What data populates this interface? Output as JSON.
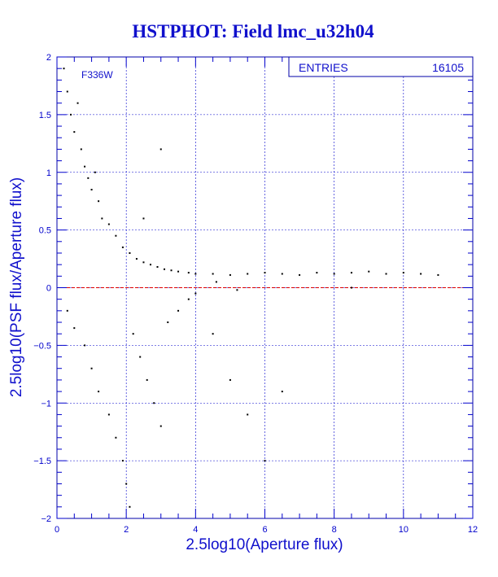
{
  "chart_data": {
    "type": "scatter",
    "title": "HSTPHOT: Field lmc_u32h04",
    "xlabel": "2.5log10(Aperture flux)",
    "ylabel": "2.5log10(PSF flux/Aperture flux)",
    "annotation": "F336W",
    "stats_box": {
      "label": "ENTRIES",
      "value": "16105"
    },
    "xlim": [
      0,
      12
    ],
    "ylim": [
      -2,
      2
    ],
    "x_ticks": [
      0,
      2,
      4,
      6,
      8,
      10,
      12
    ],
    "y_ticks": [
      -2,
      -1.5,
      -1,
      -0.5,
      0,
      0.5,
      1,
      1.5,
      2
    ],
    "x_tick_labels": [
      "0",
      "2",
      "4",
      "6",
      "8",
      "10",
      "12"
    ],
    "y_tick_labels": [
      "−2",
      "−1.5",
      "−1",
      "−0.5",
      "0",
      "0.5",
      "1",
      "1.5",
      "2"
    ],
    "grid": true,
    "reference_line": {
      "y": 0,
      "color": "#dd0000"
    },
    "series": [
      {
        "color": "#000000",
        "points": [
          [
            0.2,
            1.9
          ],
          [
            0.3,
            1.7
          ],
          [
            0.4,
            1.5
          ],
          [
            0.5,
            1.35
          ],
          [
            0.6,
            1.6
          ],
          [
            0.7,
            1.2
          ],
          [
            0.8,
            1.05
          ],
          [
            0.9,
            0.95
          ],
          [
            1.0,
            0.85
          ],
          [
            1.1,
            1.0
          ],
          [
            1.2,
            0.75
          ],
          [
            1.3,
            0.6
          ],
          [
            1.5,
            0.55
          ],
          [
            1.7,
            0.45
          ],
          [
            1.9,
            0.35
          ],
          [
            2.1,
            0.3
          ],
          [
            2.3,
            0.25
          ],
          [
            2.5,
            0.22
          ],
          [
            2.7,
            0.2
          ],
          [
            2.9,
            0.18
          ],
          [
            3.1,
            0.16
          ],
          [
            3.3,
            0.15
          ],
          [
            3.5,
            0.14
          ],
          [
            3.8,
            0.13
          ],
          [
            4.0,
            0.12
          ],
          [
            4.5,
            0.12
          ],
          [
            5.0,
            0.11
          ],
          [
            5.5,
            0.12
          ],
          [
            6.0,
            0.13
          ],
          [
            6.5,
            0.12
          ],
          [
            7.0,
            0.11
          ],
          [
            7.5,
            0.13
          ],
          [
            8.0,
            0.12
          ],
          [
            8.5,
            0.13
          ],
          [
            9.0,
            0.14
          ],
          [
            9.5,
            0.12
          ],
          [
            10.0,
            0.13
          ],
          [
            10.5,
            0.12
          ],
          [
            11.0,
            0.11
          ],
          [
            0.3,
            -0.2
          ],
          [
            0.5,
            -0.35
          ],
          [
            0.8,
            -0.5
          ],
          [
            1.0,
            -0.7
          ],
          [
            1.2,
            -0.9
          ],
          [
            1.5,
            -1.1
          ],
          [
            1.7,
            -1.3
          ],
          [
            1.9,
            -1.5
          ],
          [
            2.0,
            -1.7
          ],
          [
            2.1,
            -1.9
          ],
          [
            2.2,
            -0.4
          ],
          [
            2.4,
            -0.6
          ],
          [
            2.6,
            -0.8
          ],
          [
            2.8,
            -1.0
          ],
          [
            3.0,
            -1.2
          ],
          [
            3.2,
            -0.3
          ],
          [
            3.5,
            -0.2
          ],
          [
            3.8,
            -0.1
          ],
          [
            4.0,
            -0.05
          ],
          [
            4.5,
            -0.4
          ],
          [
            5.0,
            -0.8
          ],
          [
            5.5,
            -1.1
          ],
          [
            6.0,
            -1.5
          ],
          [
            6.5,
            -0.9
          ],
          [
            3.0,
            1.2
          ],
          [
            2.5,
            0.6
          ],
          [
            4.6,
            0.05
          ],
          [
            5.2,
            -0.02
          ],
          [
            8.5,
            0.0
          ]
        ]
      }
    ]
  }
}
